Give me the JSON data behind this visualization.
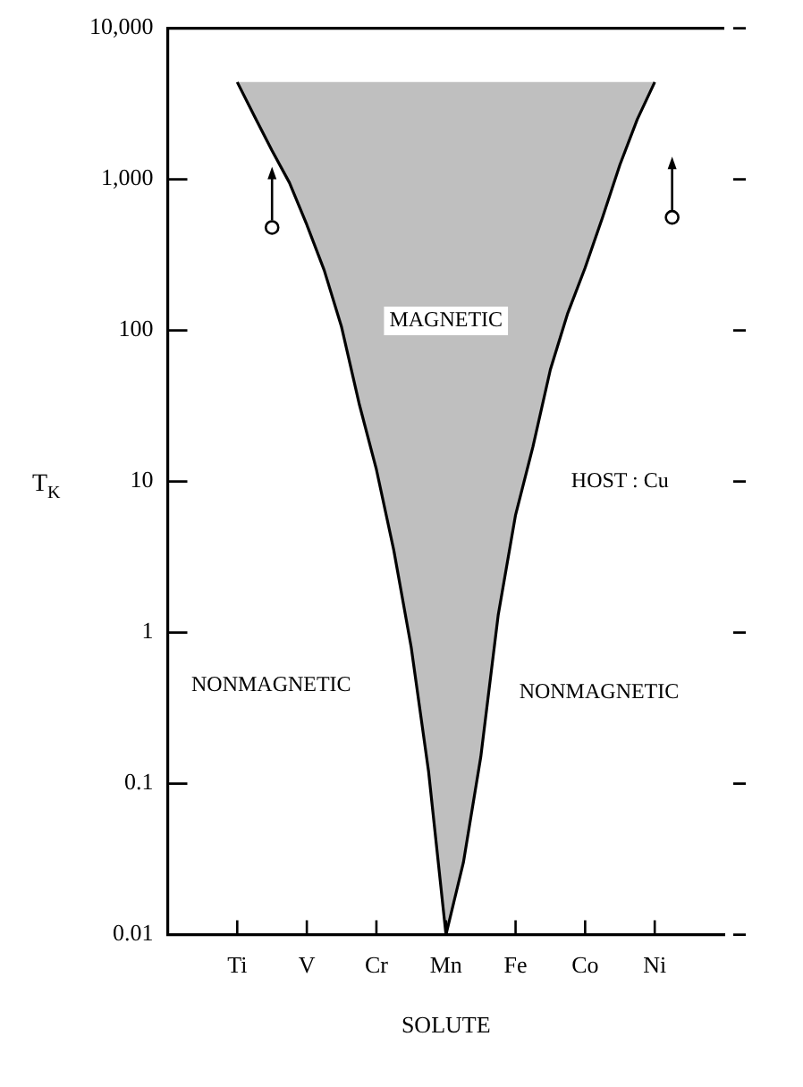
{
  "chart_data": {
    "type": "line",
    "xlabel": "SOLUTE",
    "ylabel": "T$_{K}$",
    "categories": [
      null,
      null,
      null,
      null,
      "Ti",
      null,
      null,
      null,
      "V",
      null,
      null,
      null,
      "Cr",
      null,
      null,
      null,
      "Mn",
      null,
      null,
      null,
      "Fe",
      null,
      null,
      null,
      "Co",
      null,
      null,
      null,
      "Ni",
      null,
      null,
      null,
      null
    ],
    "ylim": [
      0.01,
      10000
    ],
    "yticks": [
      0.01,
      0.1,
      1,
      10,
      100,
      {
        "value": 1000,
        "label": "1,000"
      },
      {
        "value": 10000,
        "label": "10,000"
      }
    ],
    "log": "y",
    "grid": false,
    "legend": false,
    "series": [
      {
        "color": "#000000",
        "values": [
          null,
          null,
          null,
          null,
          4400,
          2600,
          1550,
          950,
          500,
          250,
          105,
          33,
          12,
          3.5,
          0.8,
          0.12,
          0.01,
          0.03,
          0.15,
          1.3,
          6,
          17,
          55,
          130,
          260,
          560,
          1250,
          2500,
          4400,
          null,
          null,
          null,
          null
        ],
        "lower": [
          null,
          null,
          null,
          null,
          4400,
          2600,
          1550,
          950,
          500,
          250,
          105,
          33,
          12,
          3.5,
          0.8,
          0.12,
          0.01,
          0.03,
          0.15,
          1.3,
          6,
          17,
          55,
          130,
          260,
          560,
          1250,
          2500,
          4400,
          null,
          null,
          null,
          null
        ],
        "upper": [
          null,
          null,
          null,
          null,
          4400,
          4400,
          4400,
          4400,
          4400,
          4400,
          4400,
          4400,
          4400,
          4400,
          4400,
          4400,
          4400,
          4400,
          4400,
          4400,
          4400,
          4400,
          4400,
          4400,
          4400,
          4400,
          4400,
          4400,
          4400,
          null,
          null,
          null,
          null
        ]
      },
      {
        "type": "scatter",
        "color": "#000000",
        "marker": "circle",
        "values": [
          null,
          null,
          null,
          null,
          null,
          null,
          480,
          null,
          null,
          null,
          null,
          null,
          null,
          null,
          null,
          null,
          null,
          null,
          null,
          null,
          null,
          null,
          null,
          null,
          null,
          null,
          null,
          null,
          null,
          560,
          null,
          null,
          null
        ]
      }
    ],
    "annotations": [
      "MAGNETIC",
      "NONMAGNETIC",
      "NONMAGNETIC",
      "HOST : Cu"
    ]
  }
}
